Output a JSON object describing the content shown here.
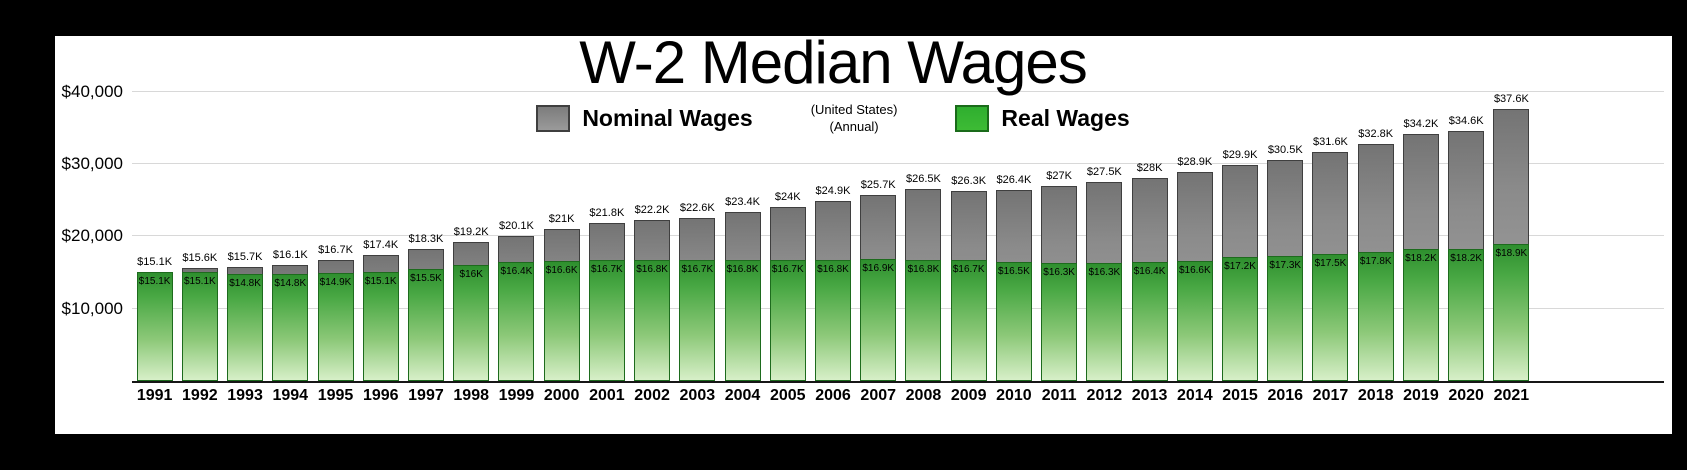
{
  "chart_data": {
    "type": "bar",
    "title": "W-2 Median Wages",
    "subtitle_lines": [
      "(United States)",
      "(Annual)"
    ],
    "legend_position": "top",
    "grid": true,
    "background_color": "#ffffff",
    "frame_color": "#000000",
    "ylim": [
      0,
      47700
    ],
    "y_axis": {
      "ticks": [
        {
          "label": "$10,000",
          "value": 10000
        },
        {
          "label": "$20,000",
          "value": 20000
        },
        {
          "label": "$30,000",
          "value": 30000
        },
        {
          "label": "$40,000",
          "value": 40000
        }
      ]
    },
    "categories": [
      "1991",
      "1992",
      "1993",
      "1994",
      "1995",
      "1996",
      "1997",
      "1998",
      "1999",
      "2000",
      "2001",
      "2002",
      "2003",
      "2004",
      "2005",
      "2006",
      "2007",
      "2008",
      "2009",
      "2010",
      "2011",
      "2012",
      "2013",
      "2014",
      "2015",
      "2016",
      "2017",
      "2018",
      "2019",
      "2020",
      "2021"
    ],
    "series": [
      {
        "name": "Nominal Wages",
        "color": "#8c8c8c",
        "values": [
          15100,
          15600,
          15700,
          16100,
          16700,
          17400,
          18300,
          19200,
          20100,
          21000,
          21800,
          22200,
          22600,
          23400,
          24000,
          24900,
          25700,
          26500,
          26300,
          26400,
          27000,
          27500,
          28000,
          28900,
          29900,
          30500,
          31600,
          32800,
          34200,
          34600,
          37600
        ],
        "labels": [
          "$15.1K",
          "$15.6K",
          "$15.7K",
          "$16.1K",
          "$16.7K",
          "$17.4K",
          "$18.3K",
          "$19.2K",
          "$20.1K",
          "$21K",
          "$21.8K",
          "$22.2K",
          "$22.6K",
          "$23.4K",
          "$24K",
          "$24.9K",
          "$25.7K",
          "$26.5K",
          "$26.3K",
          "$26.4K",
          "$27K",
          "$27.5K",
          "$28K",
          "$28.9K",
          "$29.9K",
          "$30.5K",
          "$31.6K",
          "$32.8K",
          "$34.2K",
          "$34.6K",
          "$37.6K"
        ]
      },
      {
        "name": "Real Wages",
        "color": "#2fae2f",
        "values": [
          15100,
          15100,
          14800,
          14800,
          14900,
          15100,
          15500,
          16000,
          16400,
          16600,
          16700,
          16800,
          16700,
          16800,
          16700,
          16800,
          16900,
          16800,
          16700,
          16500,
          16300,
          16300,
          16400,
          16600,
          17200,
          17300,
          17500,
          17800,
          18200,
          18200,
          18900
        ],
        "labels": [
          "$15.1K",
          "$15.1K",
          "$14.8K",
          "$14.8K",
          "$14.9K",
          "$15.1K",
          "$15.5K",
          "$16K",
          "$16.4K",
          "$16.6K",
          "$16.7K",
          "$16.8K",
          "$16.7K",
          "$16.8K",
          "$16.7K",
          "$16.8K",
          "$16.9K",
          "$16.8K",
          "$16.7K",
          "$16.5K",
          "$16.3K",
          "$16.3K",
          "$16.4K",
          "$16.6K",
          "$17.2K",
          "$17.3K",
          "$17.5K",
          "$17.8K",
          "$18.2K",
          "$18.2K",
          "$18.9K"
        ]
      }
    ]
  }
}
